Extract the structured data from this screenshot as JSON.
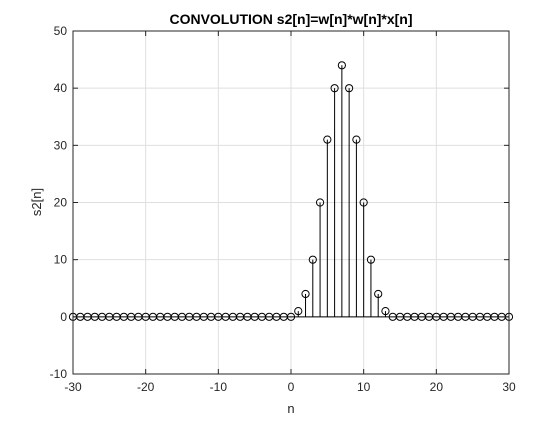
{
  "chart_data": {
    "type": "stem",
    "title": "CONVOLUTION s2[n]=w[n]*w[n]*x[n]",
    "xlabel": "n",
    "ylabel": "s2[n]",
    "xlim": [
      -30,
      30
    ],
    "ylim": [
      -10,
      50
    ],
    "xticks": [
      -30,
      -20,
      -10,
      0,
      10,
      20,
      30
    ],
    "yticks": [
      -10,
      0,
      10,
      20,
      30,
      40,
      50
    ],
    "grid": true,
    "series": [
      {
        "x": [
          -30,
          -29,
          -28,
          -27,
          -26,
          -25,
          -24,
          -23,
          -22,
          -21,
          -20,
          -19,
          -18,
          -17,
          -16,
          -15,
          -14,
          -13,
          -12,
          -11,
          -10,
          -9,
          -8,
          -7,
          -6,
          -5,
          -4,
          -3,
          -2,
          -1,
          0,
          1,
          2,
          3,
          4,
          5,
          6,
          7,
          8,
          9,
          10,
          11,
          12,
          13,
          14,
          15,
          16,
          17,
          18,
          19,
          20,
          21,
          22,
          23,
          24,
          25,
          26,
          27,
          28,
          29,
          30
        ],
        "y": [
          0,
          0,
          0,
          0,
          0,
          0,
          0,
          0,
          0,
          0,
          0,
          0,
          0,
          0,
          0,
          0,
          0,
          0,
          0,
          0,
          0,
          0,
          0,
          0,
          0,
          0,
          0,
          0,
          0,
          0,
          0,
          1,
          4,
          10,
          20,
          31,
          40,
          44,
          40,
          31,
          20,
          10,
          4,
          1,
          0,
          0,
          0,
          0,
          0,
          0,
          0,
          0,
          0,
          0,
          0,
          0,
          0,
          0,
          0,
          0,
          0
        ]
      }
    ]
  },
  "colors": {
    "stem": "#000000",
    "axes": "#262626",
    "grid": "#dfdfdf"
  }
}
